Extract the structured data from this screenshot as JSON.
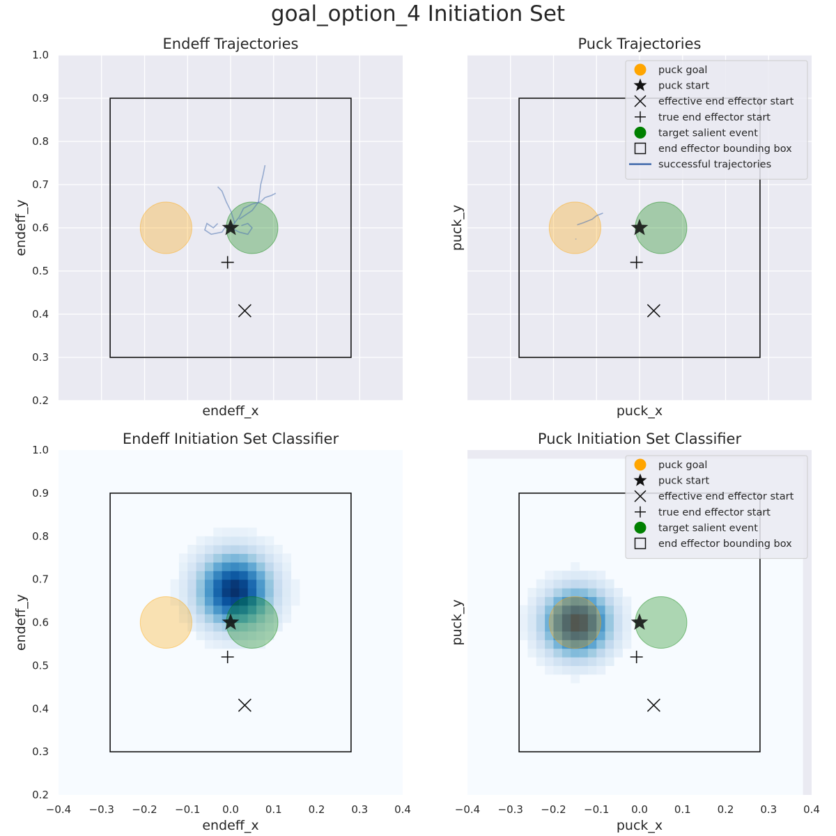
{
  "figure": {
    "suptitle": "goal_option_4 Initiation Set",
    "colors": {
      "axes_bg": "#eaeaf2",
      "grid": "#ffffff",
      "goal": "#ffa500",
      "target": "#008000",
      "marker": "#111111",
      "trajectory": "#4c72b0"
    }
  },
  "legend_entries": [
    "puck goal",
    "puck start",
    "effective end effector start",
    "true end effector start",
    "target salient event",
    "end effector bounding box",
    "successful trajectories"
  ],
  "chart_data": [
    {
      "id": "endeff-trajectories",
      "type": "line",
      "title": "Endeff Trajectories",
      "xlabel": "endeff_x",
      "ylabel": "endeff_y",
      "xlim": [
        -0.4,
        0.4
      ],
      "ylim": [
        0.2,
        1.0
      ],
      "xticks": [],
      "yticks": [
        "0.2",
        "0.3",
        "0.4",
        "0.5",
        "0.6",
        "0.7",
        "0.8",
        "0.9",
        "1.0"
      ],
      "grid": true,
      "bounding_box": {
        "x0": -0.28,
        "x1": 0.28,
        "y0": 0.3,
        "y1": 0.9
      },
      "puck_goal": {
        "x": -0.15,
        "y": 0.6,
        "radius": 0.06
      },
      "target_event": {
        "x": 0.05,
        "y": 0.6,
        "radius": 0.06
      },
      "puck_start": {
        "x": 0.0,
        "y": 0.6
      },
      "effective_endeff_start": {
        "x": 0.033,
        "y": 0.408
      },
      "true_endeff_start": {
        "x": -0.007,
        "y": 0.52
      },
      "trajectories": [
        [
          [
            -0.03,
            0.61
          ],
          [
            -0.04,
            0.6
          ],
          [
            -0.055,
            0.61
          ],
          [
            -0.06,
            0.595
          ],
          [
            -0.045,
            0.585
          ],
          [
            -0.02,
            0.59
          ],
          [
            -0.01,
            0.605
          ],
          [
            0.0,
            0.6
          ]
        ],
        [
          [
            0.0,
            0.6
          ],
          [
            0.02,
            0.625
          ],
          [
            0.03,
            0.645
          ],
          [
            0.05,
            0.655
          ],
          [
            0.07,
            0.66
          ],
          [
            0.08,
            0.67
          ],
          [
            0.095,
            0.675
          ],
          [
            0.105,
            0.68
          ]
        ],
        [
          [
            0.01,
            0.61
          ],
          [
            0.0,
            0.64
          ],
          [
            -0.01,
            0.66
          ],
          [
            -0.02,
            0.685
          ],
          [
            -0.03,
            0.695
          ]
        ],
        [
          [
            0.02,
            0.62
          ],
          [
            0.05,
            0.64
          ],
          [
            0.065,
            0.66
          ],
          [
            0.07,
            0.7
          ],
          [
            0.075,
            0.72
          ],
          [
            0.08,
            0.745
          ]
        ],
        [
          [
            0.0,
            0.6
          ],
          [
            0.02,
            0.59
          ],
          [
            0.04,
            0.585
          ],
          [
            0.05,
            0.6
          ],
          [
            0.04,
            0.61
          ],
          [
            0.025,
            0.605
          ]
        ]
      ],
      "legend": false
    },
    {
      "id": "puck-trajectories",
      "type": "line",
      "title": "Puck Trajectories",
      "xlabel": "puck_x",
      "ylabel": "puck_y",
      "xlim": [
        -0.4,
        0.4
      ],
      "ylim": [
        0.2,
        1.0
      ],
      "xticks": [],
      "yticks": [],
      "grid": true,
      "bounding_box": {
        "x0": -0.28,
        "x1": 0.28,
        "y0": 0.3,
        "y1": 0.9
      },
      "puck_goal": {
        "x": -0.15,
        "y": 0.6,
        "radius": 0.06
      },
      "target_event": {
        "x": 0.05,
        "y": 0.6,
        "radius": 0.06
      },
      "puck_start": {
        "x": 0.0,
        "y": 0.6
      },
      "effective_endeff_start": {
        "x": 0.033,
        "y": 0.408
      },
      "true_endeff_start": {
        "x": -0.007,
        "y": 0.52
      },
      "trajectories": [
        [
          [
            -0.145,
            0.607
          ],
          [
            -0.13,
            0.612
          ],
          [
            -0.11,
            0.62
          ],
          [
            -0.1,
            0.628
          ],
          [
            -0.085,
            0.634
          ]
        ],
        [
          [
            -0.148,
            0.575
          ],
          [
            -0.148,
            0.573
          ]
        ]
      ],
      "legend": true,
      "legend_placement": "upper-right"
    },
    {
      "id": "endeff-classifier",
      "type": "heatmap",
      "title": "Endeff Initiation Set Classifier",
      "xlabel": "endeff_x",
      "ylabel": "endeff_y",
      "xlim": [
        -0.4,
        0.4
      ],
      "ylim": [
        0.2,
        1.0
      ],
      "xticks": [
        "−0.4",
        "−0.3",
        "−0.2",
        "−0.1",
        "0.0",
        "0.1",
        "0.2",
        "0.3",
        "0.4"
      ],
      "yticks": [
        "0.2",
        "0.3",
        "0.4",
        "0.5",
        "0.6",
        "0.7",
        "0.8",
        "0.9",
        "1.0"
      ],
      "grid": false,
      "heat_extent": {
        "x0": -0.4,
        "x1": 0.4,
        "y0": 0.2,
        "y1": 1.0
      },
      "heat_center": {
        "x": 0.01,
        "y": 0.675
      },
      "heat_sigma": 0.06,
      "heat_cell": 0.02,
      "bounding_box": {
        "x0": -0.28,
        "x1": 0.28,
        "y0": 0.3,
        "y1": 0.9
      },
      "puck_goal": {
        "x": -0.15,
        "y": 0.6,
        "radius": 0.06
      },
      "target_event": {
        "x": 0.05,
        "y": 0.6,
        "radius": 0.06
      },
      "puck_start": {
        "x": 0.0,
        "y": 0.6
      },
      "effective_endeff_start": {
        "x": 0.033,
        "y": 0.408
      },
      "true_endeff_start": {
        "x": -0.007,
        "y": 0.52
      },
      "legend": false
    },
    {
      "id": "puck-classifier",
      "type": "heatmap",
      "title": "Puck Initiation Set Classifier",
      "xlabel": "puck_x",
      "ylabel": "puck_y",
      "xlim": [
        -0.4,
        0.4
      ],
      "ylim": [
        0.2,
        1.0
      ],
      "xticks": [
        "−0.4",
        "−0.3",
        "−0.2",
        "−0.1",
        "0.0",
        "0.1",
        "0.2",
        "0.3",
        "0.4"
      ],
      "yticks": [],
      "grid": false,
      "heat_extent": {
        "x0": -0.4,
        "x1": 0.38,
        "y0": 0.2,
        "y1": 0.98
      },
      "heat_center": {
        "x": -0.145,
        "y": 0.6
      },
      "heat_sigma": 0.055,
      "heat_cell": 0.02,
      "bounding_box": {
        "x0": -0.28,
        "x1": 0.28,
        "y0": 0.3,
        "y1": 0.9
      },
      "puck_goal": {
        "x": -0.15,
        "y": 0.6,
        "radius": 0.06
      },
      "target_event": {
        "x": 0.05,
        "y": 0.6,
        "radius": 0.06
      },
      "puck_start": {
        "x": 0.0,
        "y": 0.6
      },
      "effective_endeff_start": {
        "x": 0.033,
        "y": 0.408
      },
      "true_endeff_start": {
        "x": -0.007,
        "y": 0.52
      },
      "legend": true,
      "legend_placement": "upper-right",
      "legend_count": 6
    }
  ]
}
